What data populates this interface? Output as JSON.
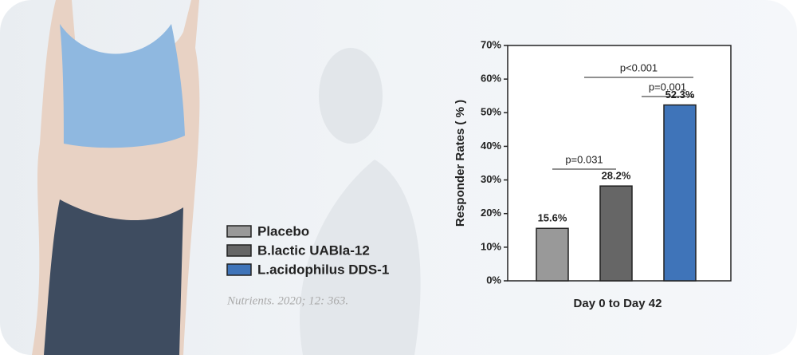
{
  "chart_data": {
    "type": "bar",
    "y_label": "Responder Rates ( % )",
    "categories": [
      "Day 0 to Day 42"
    ],
    "series": [
      {
        "name": "Placebo",
        "color": "#999999",
        "values": [
          15.6
        ],
        "value_labels": [
          "15.6%"
        ]
      },
      {
        "name": "B.lactic UABla-12",
        "color": "#666666",
        "values": [
          28.2
        ],
        "value_labels": [
          "28.2%"
        ]
      },
      {
        "name": "L.acidophilus DDS-1",
        "color": "#3f74b9",
        "values": [
          52.3
        ],
        "value_labels": [
          "52.3%"
        ]
      }
    ],
    "ylim": [
      0,
      70
    ],
    "yticks": [
      {
        "value": 0,
        "label": "0%"
      },
      {
        "value": 10,
        "label": "10%"
      },
      {
        "value": 20,
        "label": "20%"
      },
      {
        "value": 30,
        "label": "30%"
      },
      {
        "value": 40,
        "label": "40%"
      },
      {
        "value": 50,
        "label": "50%"
      },
      {
        "value": 60,
        "label": "60%"
      },
      {
        "value": 70,
        "label": "70%"
      }
    ],
    "annotations": [
      "p=0.031",
      "p<0.001",
      "p=0.001"
    ],
    "source": "Nutrients. 2020; 12: 363."
  }
}
